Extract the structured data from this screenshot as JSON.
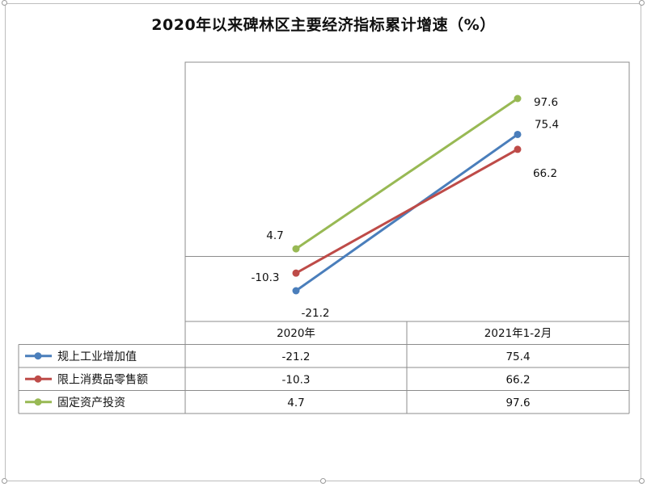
{
  "chart_data": {
    "type": "line",
    "title": "2020年以来碑林区主要经济指标累计增速（%）",
    "categories": [
      "2020年",
      "2021年1-2月"
    ],
    "series": [
      {
        "name": "规上工业增加值",
        "values": [
          -21.2,
          75.4
        ],
        "labels": [
          "-21.2",
          "75.4"
        ],
        "color": "#4a7ebb"
      },
      {
        "name": "限上消费品零售额",
        "values": [
          -10.3,
          66.2
        ],
        "labels": [
          "-10.3",
          "66.2"
        ],
        "color": "#be4b48"
      },
      {
        "name": "固定资产投资",
        "values": [
          4.7,
          97.6
        ],
        "labels": [
          "4.7",
          "97.6"
        ],
        "color": "#98b954"
      }
    ],
    "ylim": [
      -30,
      110
    ],
    "grid": false,
    "legend": "data-table",
    "xlabel": "",
    "ylabel": ""
  }
}
